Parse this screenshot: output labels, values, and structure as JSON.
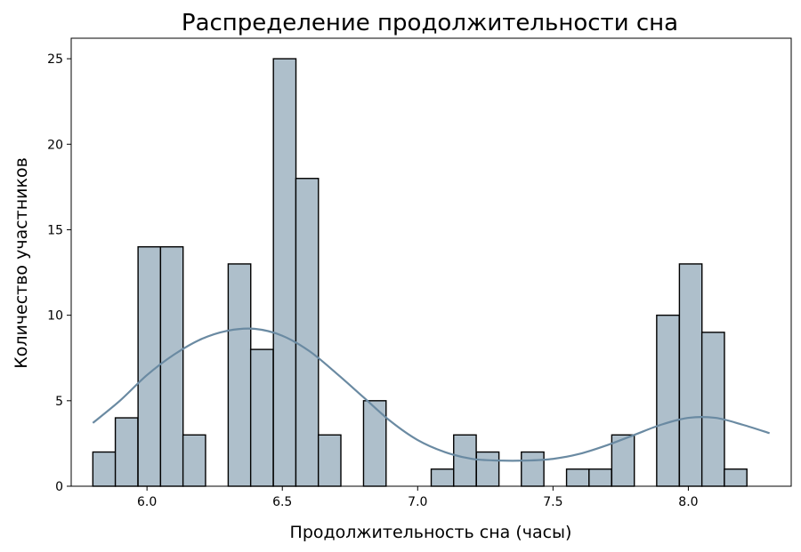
{
  "chart_data": {
    "type": "bar",
    "title": "Распределение продолжительности сна",
    "xlabel": "Продолжительность сна (часы)",
    "ylabel": "Количество участников",
    "xlim": [
      5.72,
      8.38
    ],
    "ylim": [
      0,
      26.2
    ],
    "xticks": [
      6.0,
      6.5,
      7.0,
      7.5,
      8.0
    ],
    "xtick_labels": [
      "6.0",
      "6.5",
      "7.0",
      "7.5",
      "8.0"
    ],
    "yticks": [
      0,
      5,
      10,
      15,
      20,
      25
    ],
    "ytick_labels": [
      "0",
      "5",
      "10",
      "15",
      "20",
      "25"
    ],
    "bin_width": 0.0833,
    "bins": [
      {
        "x0": 5.8,
        "value": 2
      },
      {
        "x0": 5.883,
        "value": 4
      },
      {
        "x0": 5.967,
        "value": 14
      },
      {
        "x0": 6.05,
        "value": 14
      },
      {
        "x0": 6.133,
        "value": 3
      },
      {
        "x0": 6.217,
        "value": 0
      },
      {
        "x0": 6.3,
        "value": 13
      },
      {
        "x0": 6.383,
        "value": 8
      },
      {
        "x0": 6.467,
        "value": 25
      },
      {
        "x0": 6.55,
        "value": 18
      },
      {
        "x0": 6.633,
        "value": 3
      },
      {
        "x0": 6.717,
        "value": 0
      },
      {
        "x0": 6.8,
        "value": 5
      },
      {
        "x0": 6.883,
        "value": 0
      },
      {
        "x0": 6.967,
        "value": 0
      },
      {
        "x0": 7.05,
        "value": 1
      },
      {
        "x0": 7.133,
        "value": 3
      },
      {
        "x0": 7.217,
        "value": 2
      },
      {
        "x0": 7.3,
        "value": 0
      },
      {
        "x0": 7.383,
        "value": 2
      },
      {
        "x0": 7.467,
        "value": 0
      },
      {
        "x0": 7.55,
        "value": 1
      },
      {
        "x0": 7.633,
        "value": 1
      },
      {
        "x0": 7.717,
        "value": 3
      },
      {
        "x0": 7.8,
        "value": 0
      },
      {
        "x0": 7.883,
        "value": 10
      },
      {
        "x0": 7.967,
        "value": 13
      },
      {
        "x0": 8.05,
        "value": 9
      },
      {
        "x0": 8.133,
        "value": 1
      }
    ],
    "kde": {
      "x": [
        5.8,
        5.9,
        6.0,
        6.1,
        6.2,
        6.3,
        6.4,
        6.5,
        6.6,
        6.7,
        6.8,
        6.9,
        7.0,
        7.1,
        7.2,
        7.3,
        7.4,
        7.5,
        7.6,
        7.7,
        7.8,
        7.9,
        8.0,
        8.1,
        8.2,
        8.3
      ],
      "y": [
        3.7,
        5.0,
        6.5,
        7.7,
        8.6,
        9.1,
        9.2,
        8.8,
        7.9,
        6.6,
        5.2,
        3.8,
        2.7,
        2.0,
        1.6,
        1.5,
        1.5,
        1.6,
        1.9,
        2.4,
        3.0,
        3.6,
        4.0,
        4.0,
        3.6,
        3.1
      ]
    },
    "colors": {
      "bar_fill": "#aebfcb",
      "bar_edge": "#000000",
      "kde_line": "#6a8aa2"
    }
  }
}
